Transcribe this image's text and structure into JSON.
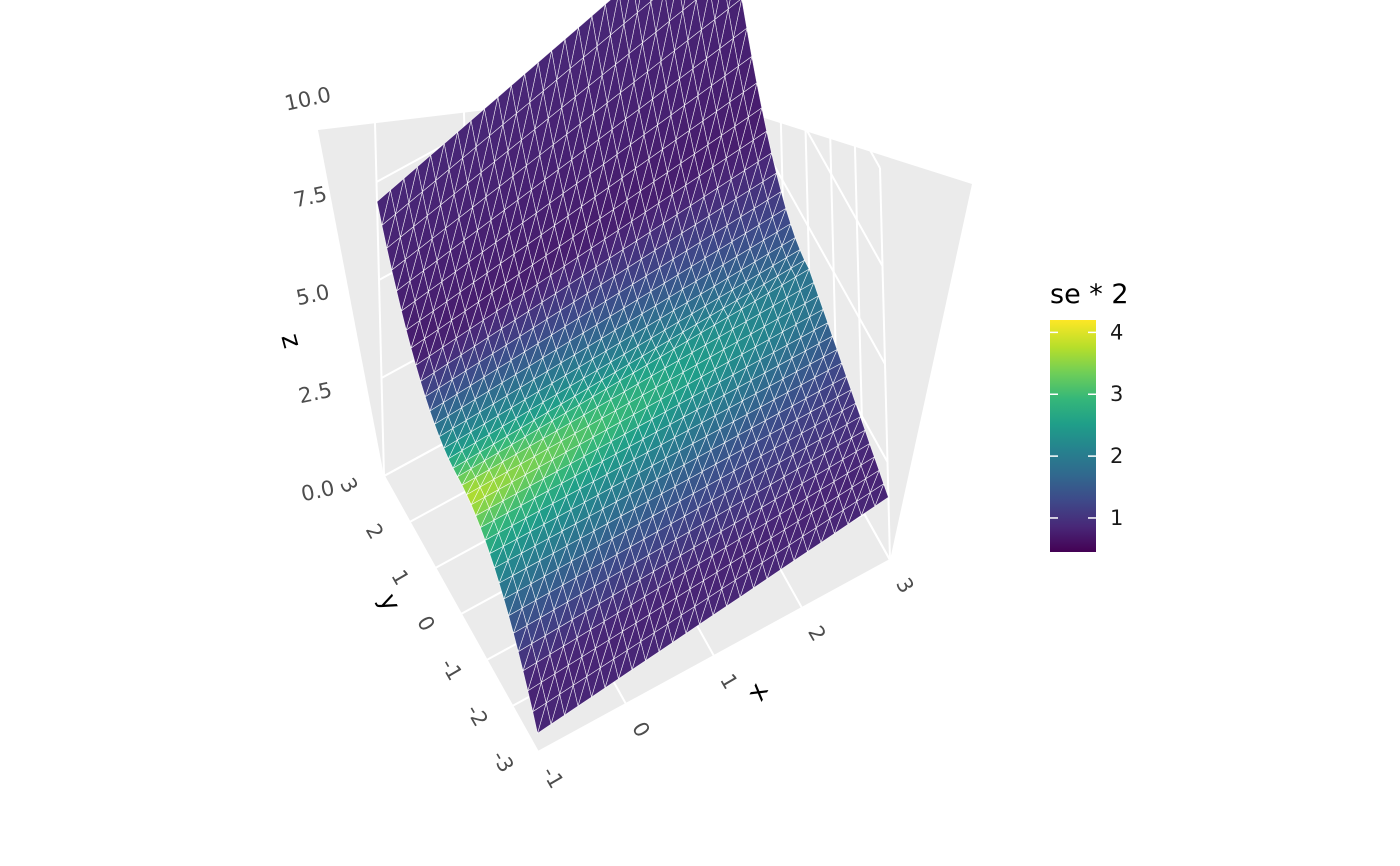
{
  "chart_data": {
    "type": "surface3d",
    "title": "",
    "axes": {
      "x": {
        "label": "x",
        "ticks": [
          "-1",
          "0",
          "1",
          "2",
          "3"
        ],
        "range": [
          -1,
          3
        ]
      },
      "y": {
        "label": "y",
        "ticks": [
          "-3",
          "-2",
          "-1",
          "0",
          "1",
          "2",
          "3"
        ],
        "range": [
          -3,
          3
        ]
      },
      "z": {
        "label": "z",
        "ticks": [
          "0.0",
          "2.5",
          "5.0",
          "7.5",
          "10.0"
        ],
        "range": [
          0,
          10
        ]
      }
    },
    "grid": true,
    "surface": {
      "x_range": [
        -1,
        3
      ],
      "y_range": [
        -3,
        3
      ],
      "corner_values": {
        "x_min_y_max": {
          "z": 7.0,
          "fill": 1.4
        },
        "x_min_y_min": {
          "z": 0.3,
          "fill": 1.0
        },
        "x_max_y_min": {
          "z": 1.6,
          "fill": 1.2
        },
        "x_max_y_max": {
          "z": 9.8,
          "fill": 0.7
        },
        "x_max_y_0": {
          "z": 3.9,
          "fill": 2.8
        },
        "x_min_y_0": {
          "z": 3.5,
          "fill": 0.6
        }
      },
      "wireframe_color": "#ffffff"
    },
    "legend": {
      "title": "se * 2",
      "position": "right",
      "ticks": [
        "1",
        "2",
        "3",
        "4"
      ],
      "range": [
        0.45,
        4.2
      ],
      "colors": [
        "#440154",
        "#482878",
        "#3e4989",
        "#31688e",
        "#26828e",
        "#1f9e89",
        "#35b779",
        "#6ece58",
        "#b5de2b",
        "#fde725"
      ]
    },
    "panel_background": "#ebebeb",
    "grid_color": "#ffffff"
  }
}
